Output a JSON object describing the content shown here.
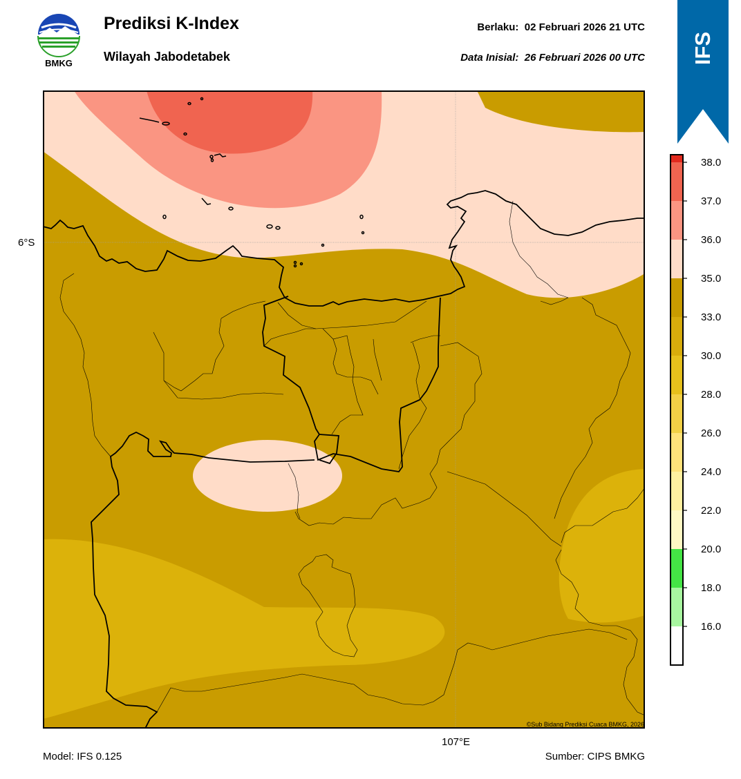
{
  "header": {
    "logo_text": "BMKG",
    "title": "Prediksi K-Index",
    "subtitle": "Wilayah Jabodetabek",
    "valid_label": "Berlaku:",
    "valid_value": "02 Februari 2026 21 UTC",
    "init_label": "Data Inisial:",
    "init_value": "26 Februari 2026 00 UTC",
    "model_badge": "IFS",
    "badge_color": "#0068a8"
  },
  "map": {
    "lat_label": "6°S",
    "lon_label": "107°E",
    "credit": "©Sub Bidang Prediksi Cuaca BMKG, 2026"
  },
  "colorbar": {
    "ticks": [
      "16.0",
      "18.0",
      "20.0",
      "22.0",
      "24.0",
      "26.0",
      "28.0",
      "30.0",
      "33.0",
      "35.0",
      "36.0",
      "37.0",
      "38.0"
    ],
    "colors": [
      "#ffffff",
      "#a8f5a0",
      "#44e445",
      "#fff8c4",
      "#fff0a0",
      "#ffe27a",
      "#f2d046",
      "#e6c01c",
      "#d8ac0c",
      "#c99c00",
      "#ffdcc8",
      "#fa9582",
      "#f06450",
      "#e22a1e"
    ]
  },
  "footer": {
    "model": "Model: IFS 0.125",
    "source": "Sumber: CIPS BMKG"
  }
}
